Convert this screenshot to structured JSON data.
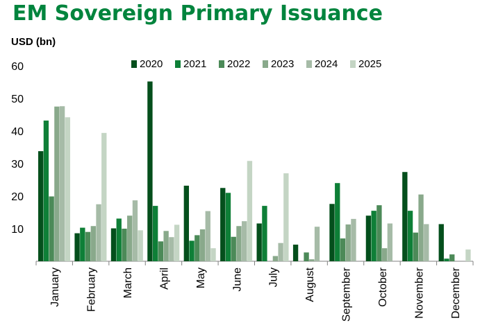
{
  "chart_data": {
    "type": "bar",
    "title": "EM Sovereign Primary Issuance",
    "ylabel": "USD (bn)",
    "xlabel": "",
    "ylim": [
      0,
      60
    ],
    "yticks": [
      10,
      20,
      30,
      40,
      50,
      60
    ],
    "legend_position": "top",
    "categories": [
      "January",
      "February",
      "March",
      "April",
      "May",
      "June",
      "July",
      "August",
      "September",
      "October",
      "November",
      "December"
    ],
    "series": [
      {
        "name": "2020",
        "color": "#044f1c",
        "values": [
          33.8,
          8.6,
          10.1,
          55.2,
          23.2,
          22.5,
          11.6,
          5.1,
          17.6,
          14.0,
          27.4,
          11.4
        ]
      },
      {
        "name": "2021",
        "color": "#0e7f37",
        "values": [
          43.2,
          10.3,
          13.1,
          17.0,
          6.3,
          21.0,
          17.0,
          0,
          24.0,
          15.5,
          15.5,
          0.8
        ]
      },
      {
        "name": "2022",
        "color": "#4c8a58",
        "values": [
          19.9,
          9.0,
          10.0,
          6.1,
          8.0,
          7.5,
          0,
          2.7,
          7.0,
          17.2,
          8.8,
          2.1
        ]
      },
      {
        "name": "2023",
        "color": "#89a98b",
        "values": [
          47.5,
          10.8,
          14.0,
          9.3,
          9.8,
          10.8,
          1.6,
          0.6,
          11.3,
          4.0,
          20.5,
          0
        ]
      },
      {
        "name": "2024",
        "color": "#a6bba7",
        "values": [
          47.6,
          17.5,
          18.7,
          7.4,
          15.4,
          12.3,
          5.6,
          10.6,
          13.0,
          11.6,
          11.4,
          0
        ]
      },
      {
        "name": "2025",
        "color": "#c4d5c4",
        "values": [
          44.2,
          39.4,
          9.5,
          11.2,
          4.0,
          30.8,
          27.0,
          0,
          0,
          0,
          0,
          3.6
        ]
      }
    ]
  }
}
